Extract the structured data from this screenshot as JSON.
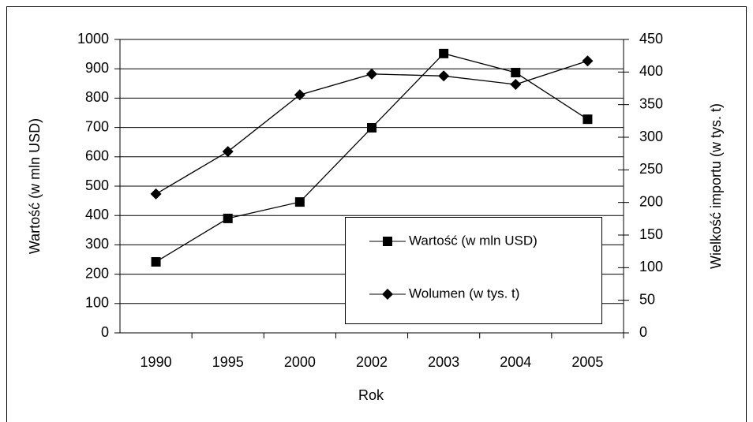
{
  "chart_data": {
    "type": "line",
    "categories": [
      "1990",
      "1995",
      "2000",
      "2002",
      "2003",
      "2004",
      "2005"
    ],
    "series": [
      {
        "name": "Wartość (w  mln USD)",
        "color": "#000000",
        "marker": "square",
        "axis": "y",
        "values": [
          242,
          390,
          446,
          699,
          952,
          887,
          728
        ]
      },
      {
        "name": "Wolumen (w  tys. t)",
        "color": "#000000",
        "marker": "diamond",
        "axis": "y2",
        "values": [
          213,
          278,
          365,
          397,
          394,
          381,
          417
        ]
      }
    ],
    "xlabel": "Rok",
    "ylabel": "Wartość (w mln USD)",
    "y2label": "Wielkość importu (w tys. t)",
    "ylim": [
      0,
      1000
    ],
    "yticks": [
      0,
      100,
      200,
      300,
      400,
      500,
      600,
      700,
      800,
      900,
      1000
    ],
    "y2lim": [
      0,
      450
    ],
    "y2ticks": [
      0,
      50,
      100,
      150,
      200,
      250,
      300,
      350,
      400,
      450
    ],
    "grid": true
  }
}
